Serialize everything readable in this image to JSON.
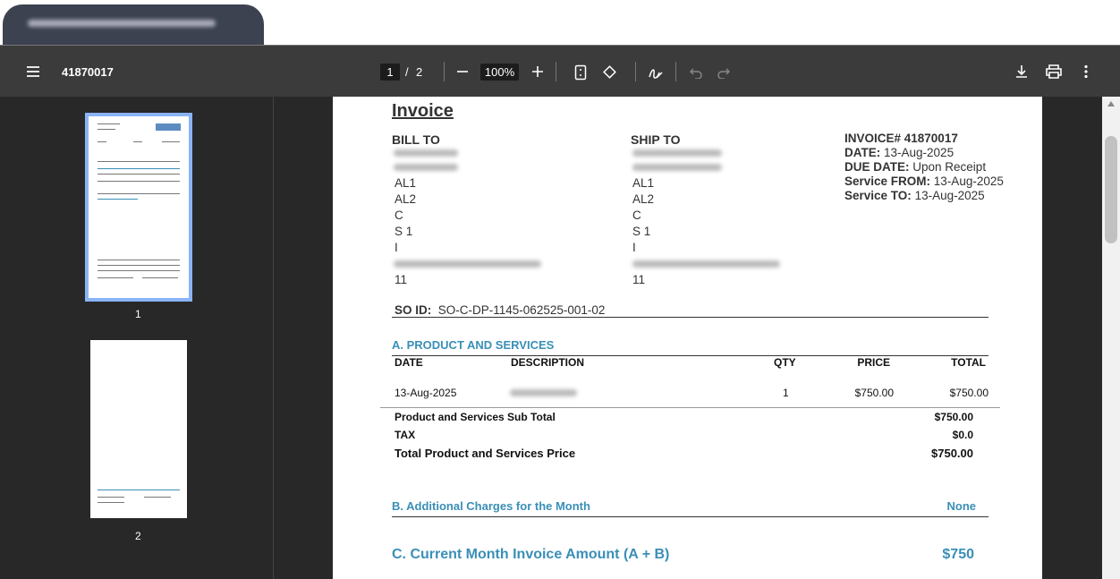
{
  "toolbar": {
    "file_name": "41870017",
    "page_current": "1",
    "page_separator": "/",
    "page_total": "2",
    "zoom": "100%"
  },
  "thumbnails": [
    {
      "label": "1"
    },
    {
      "label": "2"
    }
  ],
  "invoice": {
    "title": "Invoice",
    "bill_to": {
      "heading": "BILL TO",
      "lines": [
        "AL1",
        "AL2",
        "C",
        "S 1",
        "I",
        "11"
      ]
    },
    "ship_to": {
      "heading": "SHIP TO",
      "lines": [
        "AL1",
        "AL2",
        "C",
        "S 1",
        "I",
        "11"
      ]
    },
    "info": [
      {
        "label": "INVOICE# 41870017"
      },
      {
        "label": "DATE:",
        "value": "13-Aug-2025"
      },
      {
        "label": "DUE DATE:",
        "value": "Upon Receipt"
      },
      {
        "label": "Service FROM:",
        "value": "13-Aug-2025"
      },
      {
        "label": "Service TO:",
        "value": "13-Aug-2025"
      }
    ],
    "so_id": {
      "label": "SO ID:",
      "value": "SO-C-DP-1145-062525-001-02"
    },
    "section_a": {
      "heading": "A. PRODUCT AND SERVICES",
      "columns": [
        "DATE",
        "DESCRIPTION",
        "QTY",
        "PRICE",
        "TOTAL"
      ],
      "rows": [
        {
          "date": "13-Aug-2025",
          "qty": "1",
          "price": "$750.00",
          "total": "$750.00"
        }
      ],
      "totals": [
        {
          "label": "Product and Services Sub Total",
          "value": "$750.00"
        },
        {
          "label": "TAX",
          "value": "$0.0"
        },
        {
          "label": "Total Product and Services Price",
          "value": "$750.00"
        }
      ]
    },
    "section_b": {
      "heading": "B. Additional Charges for the Month",
      "value": "None"
    },
    "section_c": {
      "heading": "C. Current Month Invoice Amount (A + B)",
      "value": "$750"
    }
  }
}
